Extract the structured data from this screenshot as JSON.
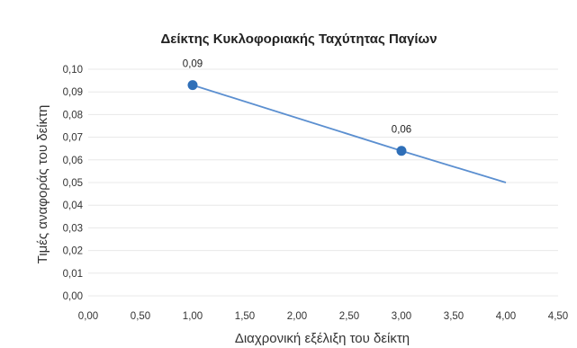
{
  "chart_data": {
    "type": "scatter",
    "title": "Δείκτης Κυκλοφοριακής Ταχύτητας Παγίων",
    "xlabel": "Διαχρονική εξέλιξη του δείκτη",
    "ylabel": "Τιμές αναφοράς του δείκτη",
    "xlim": [
      0,
      4.5
    ],
    "ylim": [
      0,
      0.1
    ],
    "grid": true,
    "x_ticks": [
      "0,00",
      "0,50",
      "1,00",
      "1,50",
      "2,00",
      "2,50",
      "3,00",
      "3,50",
      "4,00",
      "4,50"
    ],
    "y_ticks": [
      "0,00",
      "0,01",
      "0,02",
      "0,03",
      "0,04",
      "0,05",
      "0,06",
      "0,07",
      "0,08",
      "0,09",
      "0,10"
    ],
    "series": [
      {
        "color": "#5b8fd0",
        "marker_color": "#2f6fb8",
        "points": [
          {
            "x": 1,
            "y": 0.093,
            "label": "0,09",
            "marker": true
          },
          {
            "x": 3,
            "y": 0.064,
            "label": "0,06",
            "marker": true
          },
          {
            "x": 4,
            "y": 0.05,
            "marker": false
          }
        ]
      }
    ]
  }
}
